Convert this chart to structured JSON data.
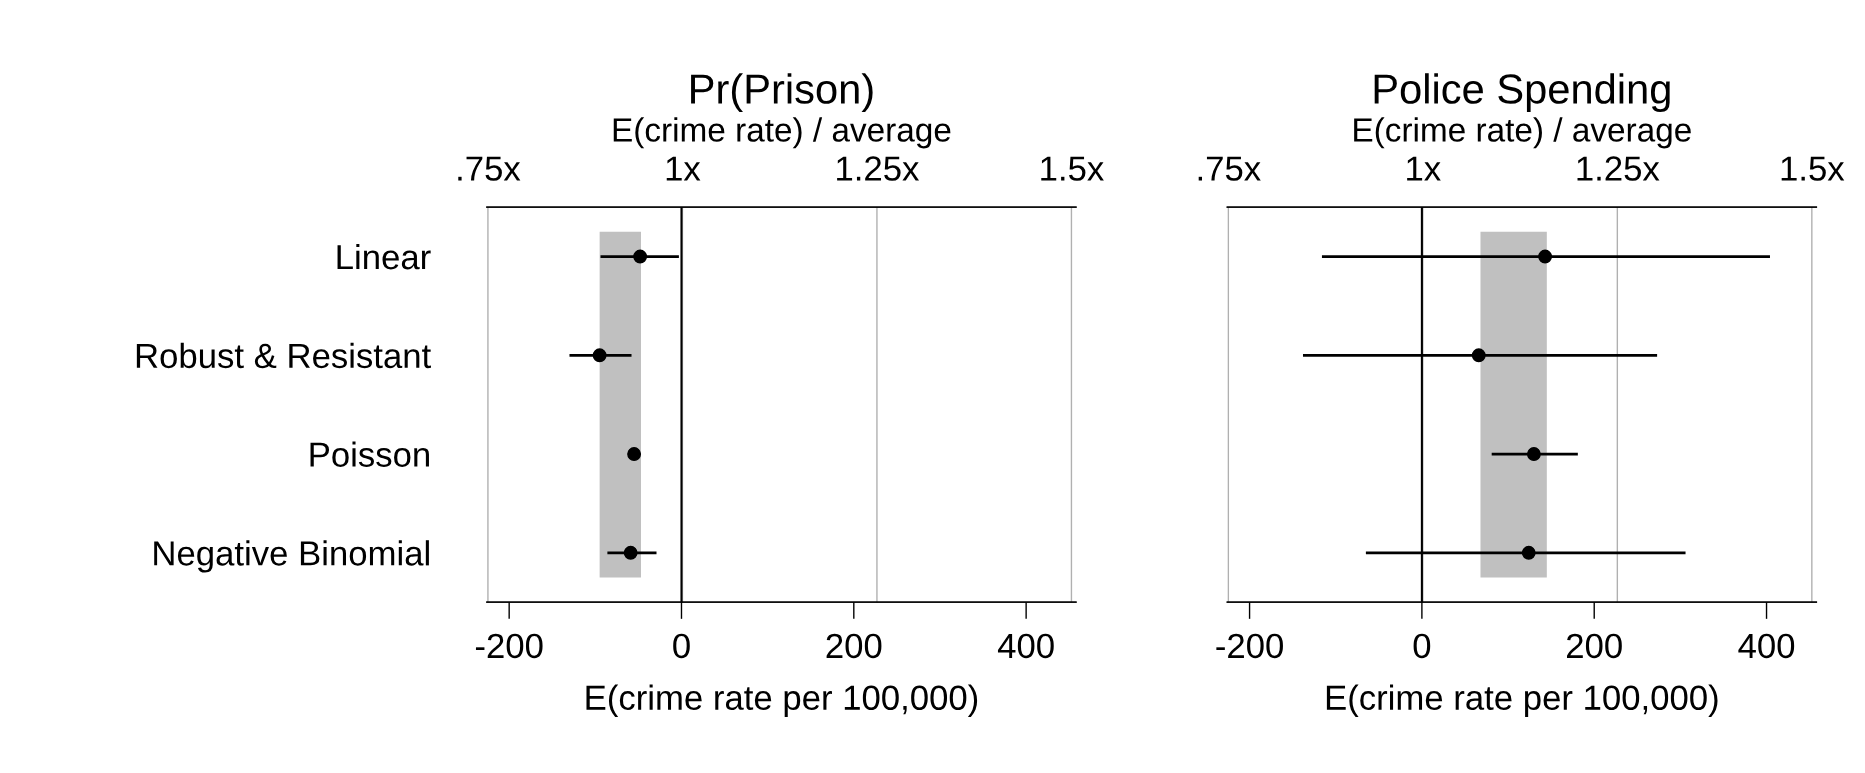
{
  "chart_data": [
    {
      "type": "scatter",
      "orientation": "horizontal",
      "title": "Pr(Prison)",
      "x2label": "E(crime rate) / average",
      "xlabel": "E(crime rate per 100,000)",
      "categories": [
        "Linear",
        "Robust & Resistant",
        "Poisson",
        "Negative Binomial"
      ],
      "values": [
        -48,
        -95,
        -55,
        -59
      ],
      "errors": [
        [
          -94,
          -3
        ],
        [
          -130,
          -58
        ],
        null,
        [
          -86,
          -29
        ]
      ],
      "color": "#000000",
      "marker": "circle",
      "xlim": [
        -226,
        458
      ],
      "xticks": [
        -200,
        0,
        200,
        400
      ],
      "x2lim": [
        0.7485,
        1.506
      ],
      "x2ticks": [
        {
          "value": 0.75,
          "label": ".75x"
        },
        {
          "value": 1,
          "label": "1x"
        },
        {
          "value": 1.25,
          "label": "1.25x"
        },
        {
          "value": 1.5,
          "label": "1.5x"
        }
      ],
      "grid": "x2",
      "bands": [
        {
          "axis": "x",
          "from": -95,
          "to": -47,
          "color": "#c0c0c0"
        }
      ],
      "ref_lines": [
        {
          "axis": "x",
          "value": 0,
          "color": "#000000"
        }
      ]
    },
    {
      "type": "scatter",
      "orientation": "horizontal",
      "title": "Police Spending",
      "x2label": "E(crime rate) / average",
      "xlabel": "E(crime rate per 100,000)",
      "categories": [
        null,
        null,
        null,
        null
      ],
      "values": [
        143,
        66,
        130,
        124
      ],
      "errors": [
        [
          -116,
          404
        ],
        [
          -138,
          273
        ],
        [
          81,
          181
        ],
        [
          -65,
          306
        ]
      ],
      "color": "#000000",
      "marker": "circle",
      "xlim": [
        -226,
        458
      ],
      "xticks": [
        -200,
        0,
        200,
        400
      ],
      "x2lim": [
        0.7485,
        1.506
      ],
      "x2ticks": [
        {
          "value": 0.75,
          "label": ".75x"
        },
        {
          "value": 1,
          "label": "1x"
        },
        {
          "value": 1.25,
          "label": "1.25x"
        },
        {
          "value": 1.5,
          "label": "1.5x"
        }
      ],
      "grid": "x2",
      "tick_labels": "x",
      "bands": [
        {
          "axis": "x",
          "from": 68,
          "to": 145,
          "color": "#c0c0c0"
        }
      ],
      "ref_lines": [
        {
          "axis": "x",
          "value": 0,
          "color": "#000000"
        }
      ]
    }
  ]
}
